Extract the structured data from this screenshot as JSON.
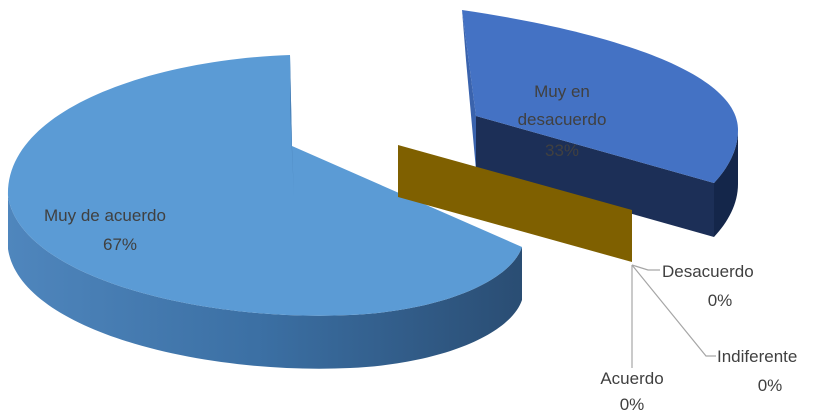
{
  "chart_data": {
    "type": "pie",
    "style": "3d-exploded",
    "slices": [
      {
        "label": "Muy de acuerdo",
        "value": 67,
        "percent_label": "67%",
        "color": "#5b9bd5"
      },
      {
        "label": "Muy en desacuerdo",
        "value": 33,
        "percent_label": "33%",
        "color": "#4472c4"
      },
      {
        "label": "Desacuerdo",
        "value": 0,
        "percent_label": "0%",
        "color": "#7f6000"
      },
      {
        "label": "Indiferente",
        "value": 0,
        "percent_label": "0%",
        "color": "#a5a5a5"
      },
      {
        "label": "Acuerdo",
        "value": 0,
        "percent_label": "0%",
        "color": "#70ad47"
      }
    ]
  }
}
